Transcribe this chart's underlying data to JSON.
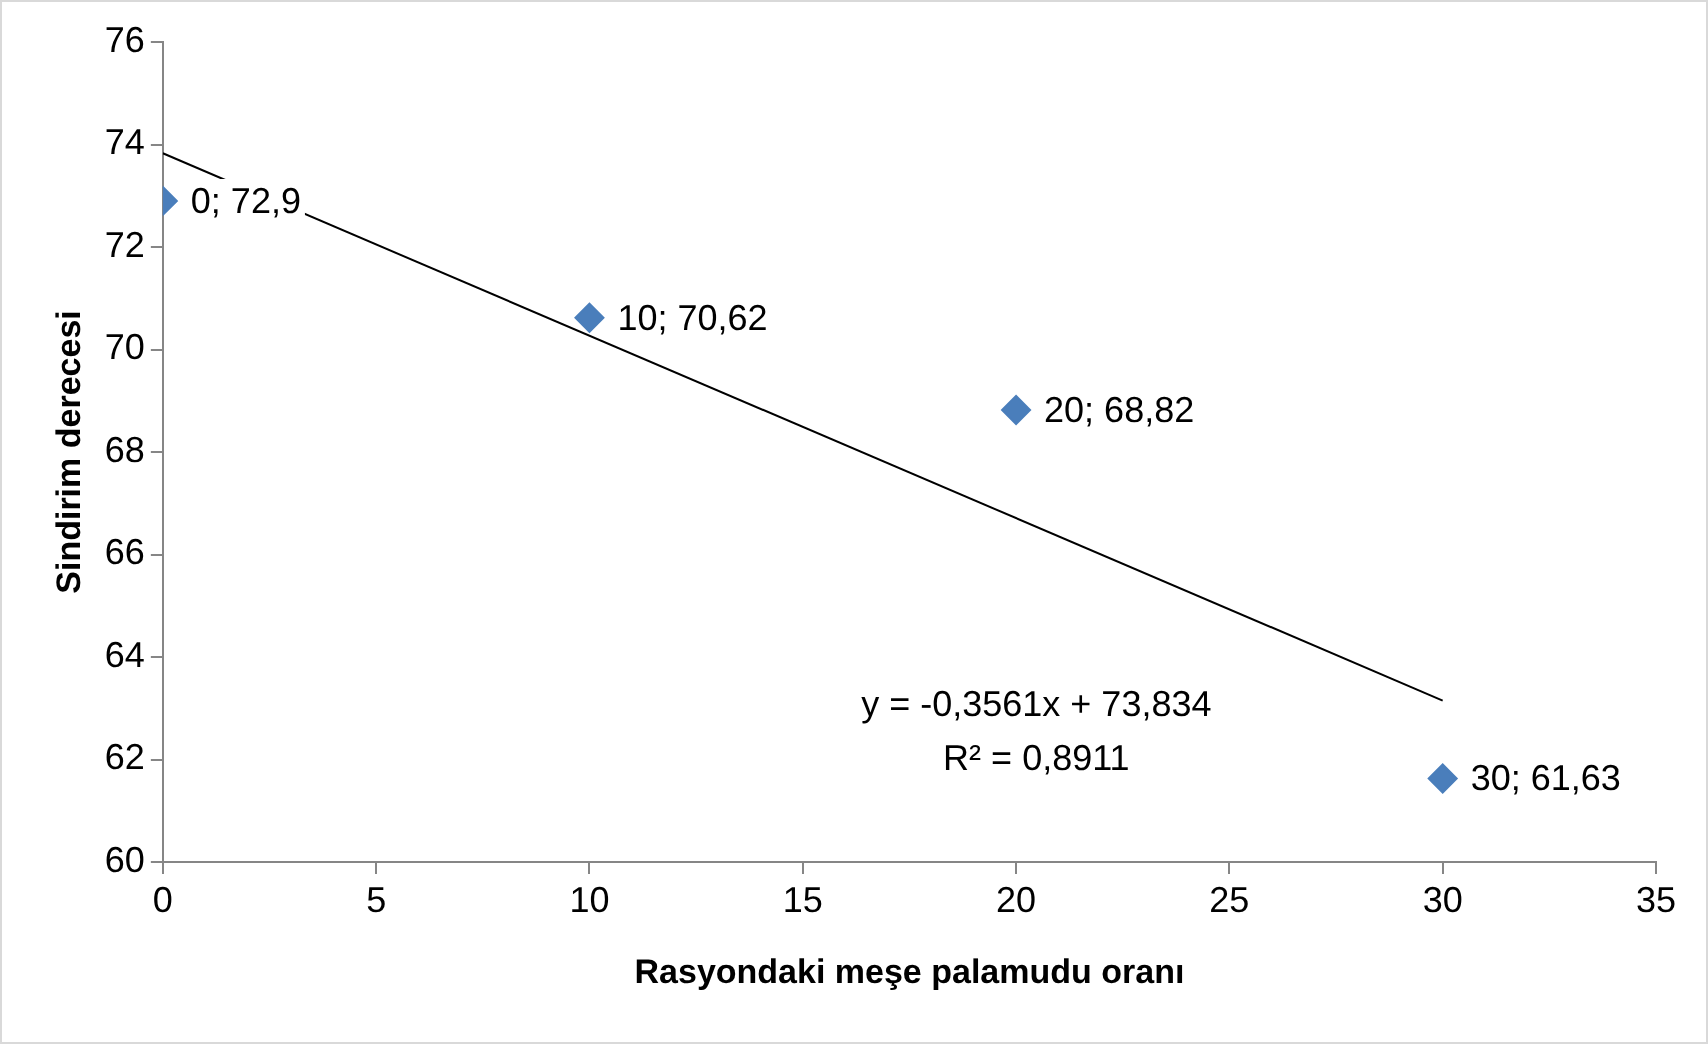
{
  "chart_data": {
    "type": "scatter",
    "xlabel": "Rasyondaki meşe palamudu oranı",
    "ylabel": "Sindirim derecesi",
    "xlim": [
      0,
      35
    ],
    "xticks": [
      0,
      5,
      10,
      15,
      20,
      25,
      30,
      35
    ],
    "ylim": [
      60,
      76
    ],
    "yticks": [
      60,
      62,
      64,
      66,
      68,
      70,
      72,
      74,
      76
    ],
    "grid": false,
    "legend": false,
    "marker": "diamond",
    "series": [
      {
        "color": "#4a7ebb",
        "x": [
          0,
          10,
          20,
          30
        ],
        "values": [
          72.9,
          70.62,
          68.82,
          61.63
        ],
        "value_labels": [
          "0; 72,9",
          "10; 70,62",
          "20; 68,82",
          "30; 61,63"
        ]
      },
      {
        "type": "line",
        "color": "#000000",
        "marker": "none",
        "x": [
          0,
          30
        ],
        "values": [
          73.83,
          63.15
        ]
      }
    ],
    "annotations": [
      "y = -0,3561x + 73,834",
      "R² = 0,8911"
    ]
  }
}
